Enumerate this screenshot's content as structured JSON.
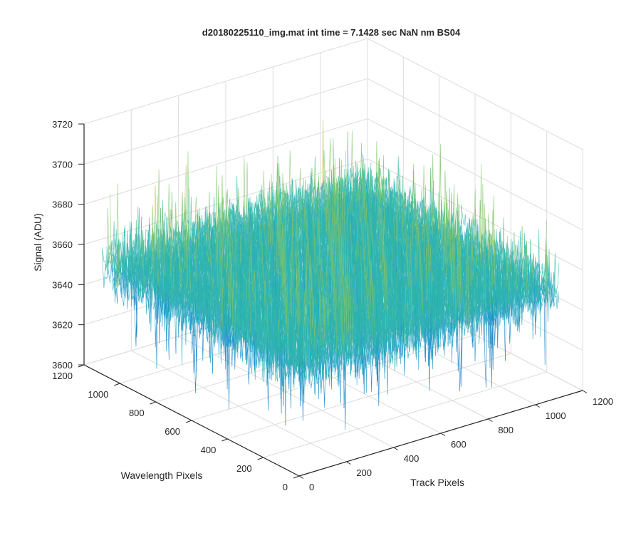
{
  "chart_data": {
    "type": "surface",
    "title": "d20180225110_img.mat int time = 7.1428 sec  NaN nm BS04",
    "xlabel": "Track Pixels",
    "ylabel": "Wavelength Pixels",
    "zlabel": "Signal (ADU)",
    "xlim": [
      0,
      1200
    ],
    "ylim": [
      0,
      1200
    ],
    "zlim": [
      3600,
      3720
    ],
    "xticks": [
      "0",
      "200",
      "400",
      "600",
      "800",
      "1000",
      "1200"
    ],
    "yticks": [
      "0",
      "200",
      "400",
      "600",
      "800",
      "1000",
      "1200"
    ],
    "zticks": [
      "3600",
      "3620",
      "3640",
      "3660",
      "3680",
      "3700",
      "3720"
    ],
    "data_extent": {
      "x": [
        0,
        1100
      ],
      "y": [
        0,
        1100
      ]
    },
    "signal_mean": 3655,
    "signal_range": [
      3600,
      3710
    ],
    "grid": true,
    "colormap": [
      "#0072bd",
      "#1a9ec4",
      "#2cb5a8",
      "#7fc36a",
      "#e6c54a"
    ]
  }
}
